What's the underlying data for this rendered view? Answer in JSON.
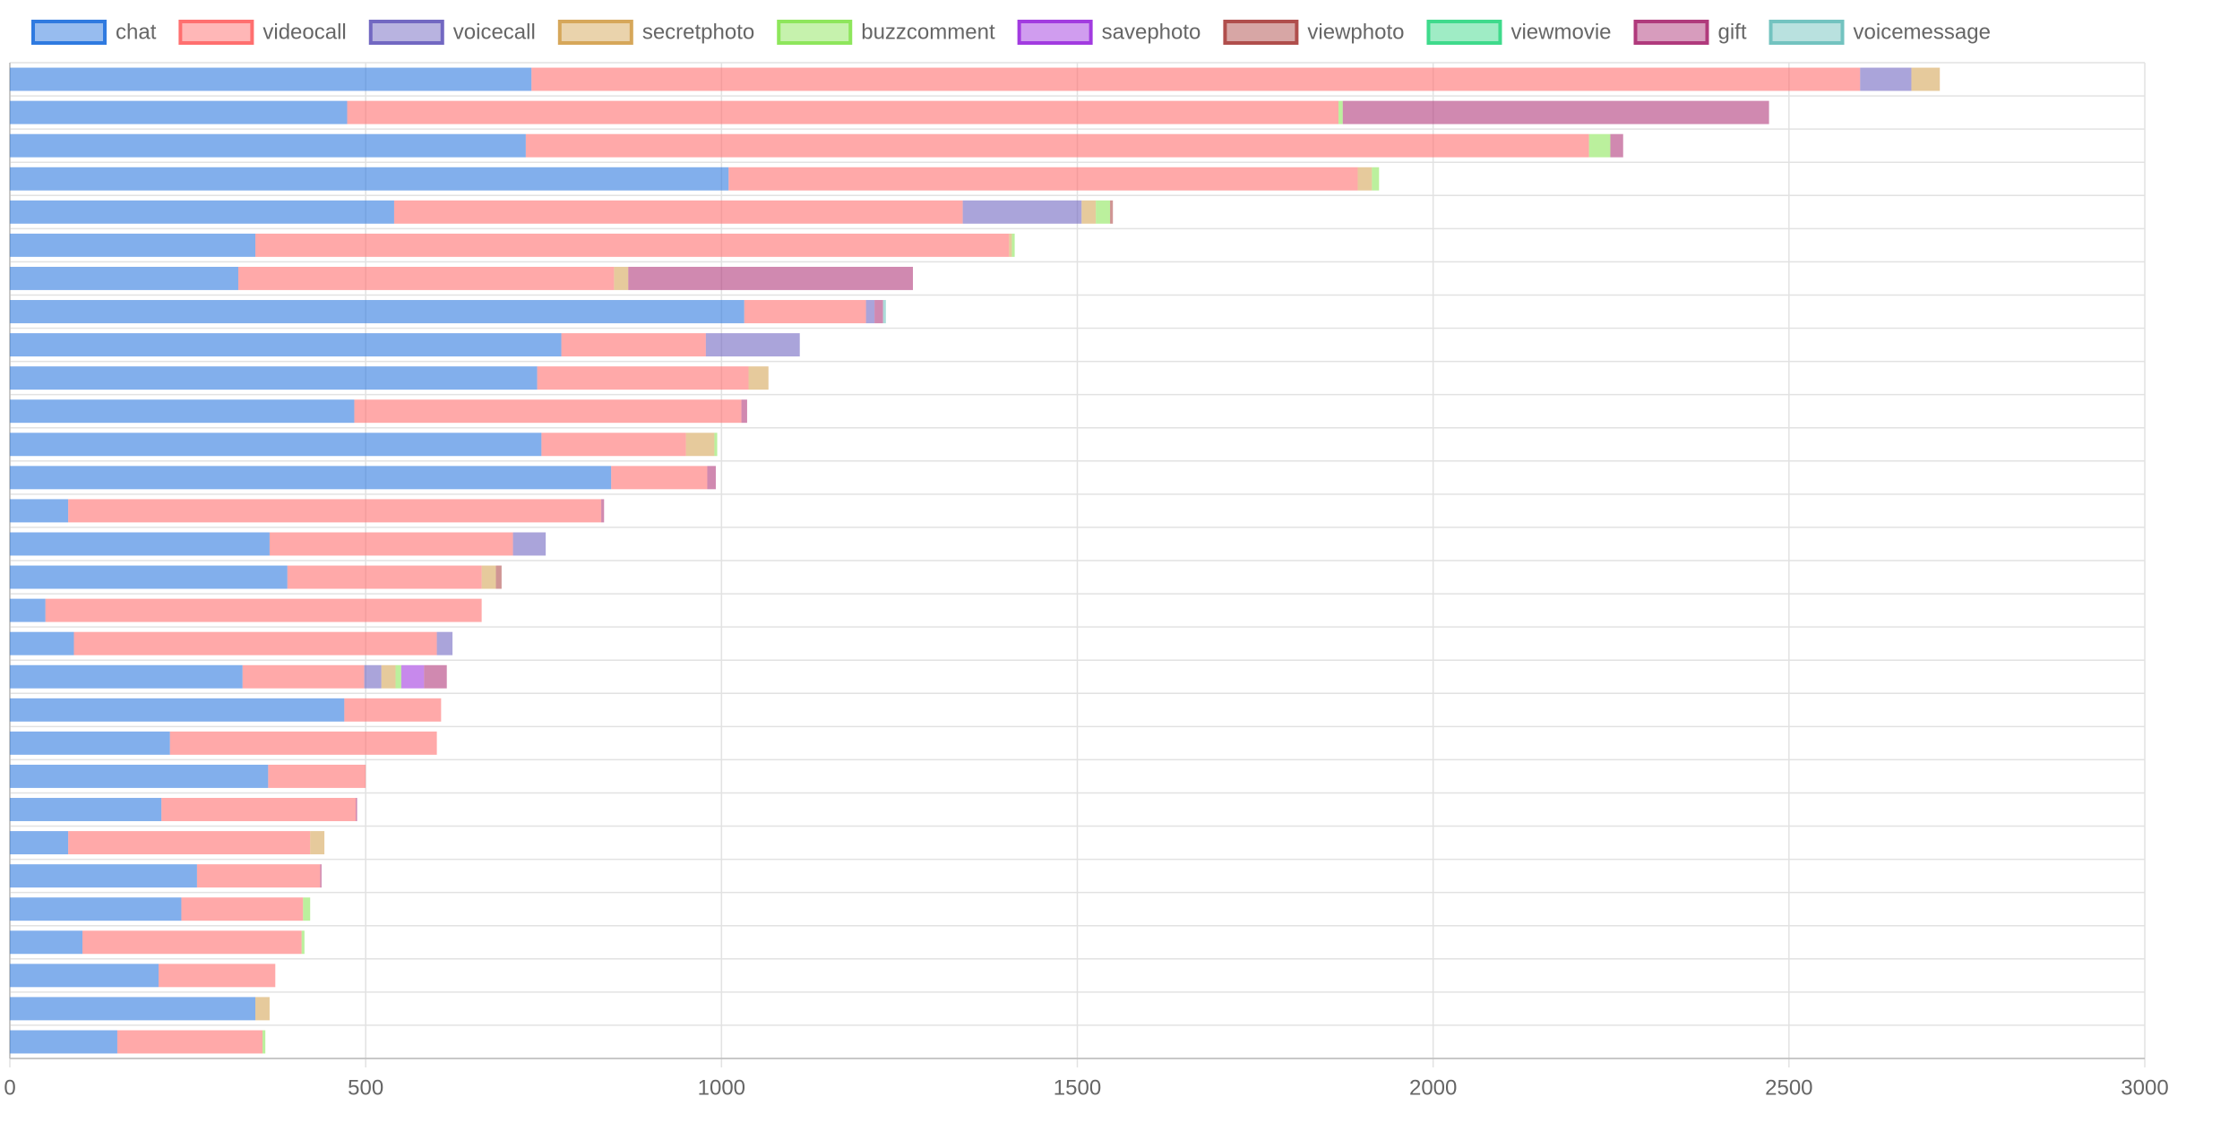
{
  "chart_data": {
    "type": "stacked-barh",
    "categories": [
      null,
      null,
      null,
      null,
      null,
      null,
      null,
      null,
      null,
      null,
      null,
      null,
      null,
      null,
      null,
      null,
      null,
      null,
      null,
      null,
      null,
      null,
      null,
      null,
      null,
      null,
      null,
      null,
      null,
      null
    ],
    "series": [
      {
        "name": "chat",
        "color": "#2f7ae0",
        "values": [
          733,
          474,
          725,
          1010,
          540,
          345,
          321,
          1032,
          775,
          741,
          484,
          747,
          845,
          82,
          365,
          390,
          50,
          90,
          327,
          470,
          225,
          363,
          213,
          82,
          263,
          241,
          102,
          209,
          345,
          151
        ]
      },
      {
        "name": "videocall",
        "color": "#ff6f6f",
        "values": [
          1867,
          1393,
          1494,
          884,
          799,
          1059,
          528,
          171,
          203,
          297,
          544,
          203,
          135,
          749,
          342,
          273,
          613,
          510,
          171,
          136,
          375,
          137,
          273,
          340,
          173,
          171,
          308,
          164,
          0,
          204
        ]
      },
      {
        "name": "voicecall",
        "color": "#7268c2",
        "values": [
          72,
          0,
          0,
          0,
          167,
          0,
          0,
          12,
          132,
          0,
          0,
          0,
          0,
          0,
          46,
          0,
          0,
          22,
          24,
          0,
          0,
          0,
          0,
          0,
          0,
          0,
          0,
          0,
          0,
          0
        ]
      },
      {
        "name": "secretphoto",
        "color": "#d6a75a",
        "values": [
          40,
          0,
          0,
          20,
          20,
          4,
          20,
          0,
          0,
          28,
          0,
          40,
          0,
          0,
          0,
          20,
          0,
          0,
          20,
          0,
          0,
          0,
          0,
          20,
          0,
          0,
          0,
          0,
          20,
          0
        ]
      },
      {
        "name": "buzzcomment",
        "color": "#8ee65c",
        "values": [
          0,
          6,
          30,
          10,
          20,
          4,
          0,
          0,
          0,
          0,
          0,
          4,
          0,
          0,
          0,
          0,
          0,
          0,
          8,
          0,
          0,
          0,
          0,
          0,
          0,
          10,
          4,
          0,
          0,
          4
        ]
      },
      {
        "name": "savephoto",
        "color": "#a23be0",
        "values": [
          0,
          0,
          0,
          0,
          0,
          0,
          0,
          0,
          0,
          0,
          0,
          0,
          0,
          0,
          0,
          0,
          0,
          0,
          32,
          0,
          0,
          0,
          0,
          0,
          0,
          0,
          0,
          0,
          0,
          0
        ]
      },
      {
        "name": "viewphoto",
        "color": "#b04e4c",
        "values": [
          0,
          0,
          0,
          0,
          4,
          0,
          0,
          0,
          0,
          0,
          0,
          0,
          0,
          0,
          0,
          8,
          0,
          0,
          0,
          0,
          0,
          0,
          0,
          0,
          0,
          0,
          0,
          0,
          0,
          0
        ]
      },
      {
        "name": "viewmovie",
        "color": "#3fda8c",
        "values": [
          0,
          0,
          0,
          0,
          0,
          0,
          0,
          0,
          0,
          0,
          0,
          0,
          0,
          0,
          0,
          0,
          0,
          0,
          0,
          0,
          0,
          0,
          0,
          0,
          0,
          0,
          0,
          0,
          0,
          0
        ]
      },
      {
        "name": "gift",
        "color": "#b03a7c",
        "values": [
          0,
          599,
          18,
          0,
          0,
          0,
          400,
          12,
          0,
          0,
          8,
          0,
          12,
          4,
          0,
          0,
          0,
          0,
          32,
          0,
          0,
          0,
          2,
          0,
          2,
          0,
          0,
          0,
          0,
          0
        ]
      },
      {
        "name": "voicemessage",
        "color": "#73c3c0",
        "values": [
          0,
          0,
          0,
          0,
          0,
          0,
          0,
          4,
          0,
          0,
          0,
          0,
          0,
          0,
          0,
          0,
          0,
          0,
          0,
          0,
          0,
          0,
          0,
          0,
          0,
          0,
          0,
          0,
          0,
          0
        ]
      }
    ],
    "xlim": [
      0,
      3000
    ],
    "xticks": [
      0,
      500,
      1000,
      1500,
      2000,
      2500,
      3000
    ],
    "grid": true,
    "legend": "top"
  }
}
